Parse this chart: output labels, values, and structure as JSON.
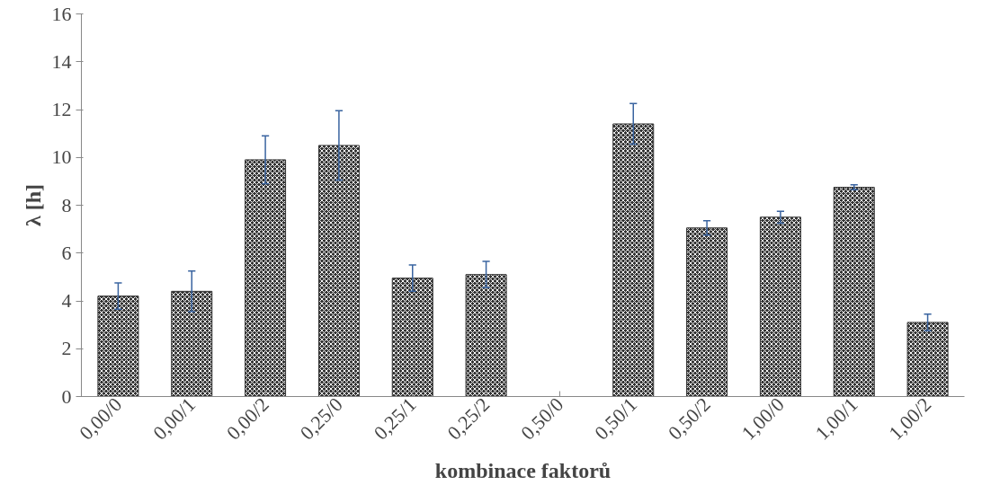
{
  "chart_data": {
    "type": "bar",
    "xlabel": "kombinace faktorů",
    "ylabel": "λ [h]",
    "categories": [
      "0,00/0",
      "0,00/1",
      "0,00/2",
      "0,25/0",
      "0,25/1",
      "0,25/2",
      "0,50/0",
      "0,50/1",
      "0,50/2",
      "1,00/0",
      "1,00/1",
      "1,00/2"
    ],
    "values": [
      4.2,
      4.4,
      9.9,
      10.5,
      4.95,
      5.1,
      null,
      11.4,
      7.05,
      7.5,
      8.75,
      3.1
    ],
    "errors": [
      0.55,
      0.85,
      1.0,
      1.45,
      0.55,
      0.55,
      null,
      0.85,
      0.3,
      0.25,
      0.1,
      0.35
    ],
    "color": "#333333",
    "ylim": [
      0,
      16
    ],
    "yticks": [
      0,
      2,
      4,
      6,
      8,
      10,
      12,
      14,
      16
    ],
    "grid": false
  }
}
